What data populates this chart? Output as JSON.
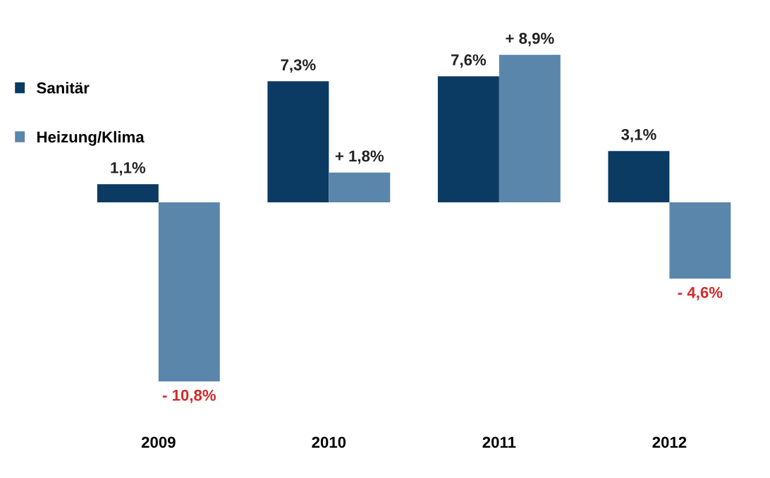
{
  "chart_data": {
    "type": "bar",
    "categories": [
      "2009",
      "2010",
      "2011",
      "2012"
    ],
    "series": [
      {
        "name": "Sanitär",
        "color": "#0b3a63",
        "values": [
          1.1,
          7.3,
          7.6,
          3.1
        ],
        "value_labels": [
          "1,1%",
          "7,3%",
          "7,6%",
          "3,1%"
        ]
      },
      {
        "name": "Heizung/Klima",
        "color": "#5b86ab",
        "values": [
          -10.8,
          1.8,
          8.9,
          -4.6
        ],
        "value_labels": [
          "- 10,8%",
          "+ 1,8%",
          "+ 8,9%",
          "- 4,6%"
        ]
      }
    ],
    "legend": "top left",
    "grid": false
  }
}
